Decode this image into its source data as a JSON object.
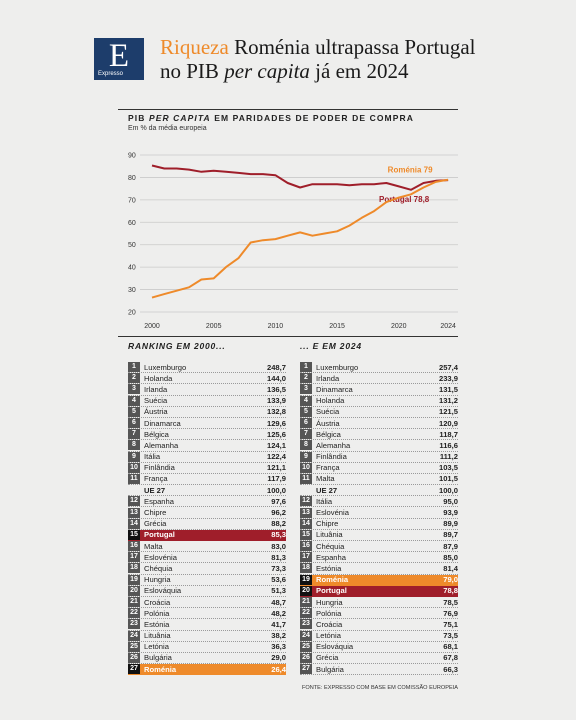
{
  "header": {
    "logo_letter": "E",
    "logo_word": "Expresso",
    "kicker": "Riqueza",
    "title_part1": " Roménia ultrapassa Portugal no PIB ",
    "title_italic": "per capita",
    "title_part2": " já em 2024"
  },
  "chart_header": {
    "title_part1": "PIB ",
    "title_italic": "PER CAPITA",
    "title_part2": " EM PARIDADES DE PODER DE COMPRA",
    "subtitle": "Em % da média europeia"
  },
  "chart_data": {
    "type": "line",
    "x": [
      2000,
      2001,
      2002,
      2003,
      2004,
      2005,
      2006,
      2007,
      2008,
      2009,
      2010,
      2011,
      2012,
      2013,
      2014,
      2015,
      2016,
      2017,
      2018,
      2019,
      2020,
      2021,
      2022,
      2023,
      2024
    ],
    "xlim": [
      2000,
      2024.8
    ],
    "xticks": [
      2000,
      2005,
      2010,
      2015,
      2020,
      2024
    ],
    "ylim": [
      20,
      90
    ],
    "yticks": [
      20,
      30,
      40,
      50,
      60,
      70,
      80,
      90
    ],
    "grid": "horizontal",
    "series": [
      {
        "name": "Portugal",
        "end_label": "Portugal 78,8",
        "color": "#9f1e2a",
        "values": [
          85.3,
          84.0,
          84.0,
          83.5,
          82.5,
          83.0,
          82.5,
          82.0,
          81.5,
          81.5,
          81.0,
          77.5,
          75.5,
          77.0,
          77.0,
          77.0,
          76.5,
          77.0,
          77.0,
          77.5,
          76.0,
          74.5,
          77.5,
          78.5,
          78.8
        ]
      },
      {
        "name": "Roménia",
        "end_label": "Roménia 79",
        "color": "#ee8a2a",
        "values": [
          26.4,
          28.0,
          29.5,
          31.0,
          34.5,
          35.0,
          40.0,
          44.0,
          51.0,
          52.0,
          52.5,
          54.0,
          55.5,
          54.0,
          55.0,
          56.0,
          58.5,
          62.0,
          65.0,
          69.0,
          71.0,
          72.5,
          75.5,
          78.0,
          79.0
        ]
      }
    ]
  },
  "ranking_2000": {
    "heading": "RANKING EM 2000...",
    "rows": [
      {
        "rank": "1",
        "name": "Luxemburgo",
        "value": "248,7"
      },
      {
        "rank": "2",
        "name": "Holanda",
        "value": "144,0"
      },
      {
        "rank": "3",
        "name": "Irlanda",
        "value": "136,5"
      },
      {
        "rank": "4",
        "name": "Suécia",
        "value": "133,9"
      },
      {
        "rank": "5",
        "name": "Áustria",
        "value": "132,8"
      },
      {
        "rank": "6",
        "name": "Dinamarca",
        "value": "129,6"
      },
      {
        "rank": "7",
        "name": "Bélgica",
        "value": "125,6"
      },
      {
        "rank": "8",
        "name": "Alemanha",
        "value": "124,1"
      },
      {
        "rank": "9",
        "name": "Itália",
        "value": "122,4"
      },
      {
        "rank": "10",
        "name": "Finlândia",
        "value": "121,1"
      },
      {
        "rank": "11",
        "name": "França",
        "value": "117,9"
      },
      {
        "rank": "",
        "name": "UE 27",
        "value": "100,0",
        "kind": "eu"
      },
      {
        "rank": "12",
        "name": "Espanha",
        "value": "97,6"
      },
      {
        "rank": "13",
        "name": "Chipre",
        "value": "96,2"
      },
      {
        "rank": "14",
        "name": "Grécia",
        "value": "88,2"
      },
      {
        "rank": "15",
        "name": "Portugal",
        "value": "85,3",
        "kind": "hl-red"
      },
      {
        "rank": "16",
        "name": "Malta",
        "value": "83,0"
      },
      {
        "rank": "17",
        "name": "Eslovénia",
        "value": "81,3"
      },
      {
        "rank": "18",
        "name": "Chéquia",
        "value": "73,3"
      },
      {
        "rank": "19",
        "name": "Hungria",
        "value": "53,6"
      },
      {
        "rank": "20",
        "name": "Eslováquia",
        "value": "51,3"
      },
      {
        "rank": "21",
        "name": "Croácia",
        "value": "48,7"
      },
      {
        "rank": "22",
        "name": "Polónia",
        "value": "48,2"
      },
      {
        "rank": "23",
        "name": "Estónia",
        "value": "41,7"
      },
      {
        "rank": "24",
        "name": "Lituânia",
        "value": "38,2"
      },
      {
        "rank": "25",
        "name": "Letónia",
        "value": "36,3"
      },
      {
        "rank": "26",
        "name": "Bulgária",
        "value": "29,0"
      },
      {
        "rank": "27",
        "name": "Roménia",
        "value": "26,4",
        "kind": "hl-orange"
      }
    ]
  },
  "ranking_2024": {
    "heading": "... E EM 2024",
    "rows": [
      {
        "rank": "1",
        "name": "Luxemburgo",
        "value": "257,4"
      },
      {
        "rank": "2",
        "name": "Irlanda",
        "value": "233,9"
      },
      {
        "rank": "3",
        "name": "Dinamarca",
        "value": "131,5"
      },
      {
        "rank": "4",
        "name": "Holanda",
        "value": "131,2"
      },
      {
        "rank": "5",
        "name": "Suécia",
        "value": "121,5"
      },
      {
        "rank": "6",
        "name": "Áustria",
        "value": "120,9"
      },
      {
        "rank": "7",
        "name": "Bélgica",
        "value": "118,7"
      },
      {
        "rank": "8",
        "name": "Alemanha",
        "value": "116,6"
      },
      {
        "rank": "9",
        "name": "Finlândia",
        "value": "111,2"
      },
      {
        "rank": "10",
        "name": "França",
        "value": "103,5"
      },
      {
        "rank": "11",
        "name": "Malta",
        "value": "101,5"
      },
      {
        "rank": "",
        "name": "UE 27",
        "value": "100,0",
        "kind": "eu"
      },
      {
        "rank": "12",
        "name": "Itália",
        "value": "95,0"
      },
      {
        "rank": "13",
        "name": "Eslovénia",
        "value": "93,9"
      },
      {
        "rank": "14",
        "name": "Chipre",
        "value": "89,9"
      },
      {
        "rank": "15",
        "name": "Lituânia",
        "value": "89,7"
      },
      {
        "rank": "16",
        "name": "Chéquia",
        "value": "87,9"
      },
      {
        "rank": "17",
        "name": "Espanha",
        "value": "85,0"
      },
      {
        "rank": "18",
        "name": "Estónia",
        "value": "81,4"
      },
      {
        "rank": "19",
        "name": "Roménia",
        "value": "79,0",
        "kind": "hl-orange"
      },
      {
        "rank": "20",
        "name": "Portugal",
        "value": "78,8",
        "kind": "hl-red"
      },
      {
        "rank": "21",
        "name": "Hungria",
        "value": "78,5"
      },
      {
        "rank": "22",
        "name": "Polónia",
        "value": "76,9"
      },
      {
        "rank": "23",
        "name": "Croácia",
        "value": "75,1"
      },
      {
        "rank": "24",
        "name": "Letónia",
        "value": "73,5"
      },
      {
        "rank": "25",
        "name": "Eslováquia",
        "value": "68,1"
      },
      {
        "rank": "26",
        "name": "Grécia",
        "value": "67,8"
      },
      {
        "rank": "27",
        "name": "Bulgária",
        "value": "66,3"
      }
    ]
  },
  "source": "FONTE: EXPRESSO COM BASE EM COMISSÃO EUROPEIA"
}
